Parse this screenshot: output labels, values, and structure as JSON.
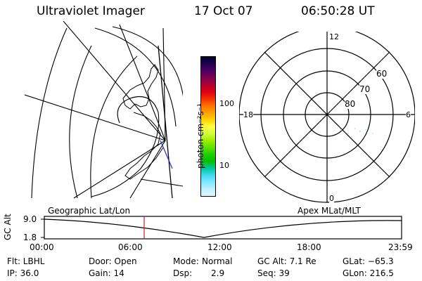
{
  "header": {
    "instrument": "Ultraviolet Imager",
    "date": "17 Oct 07",
    "time": "06:50:28 UT"
  },
  "colorbar": {
    "unit_label": "photon cm⁻²s⁻¹",
    "ticks": [
      "100",
      "10"
    ],
    "colors": [
      "#000030",
      "#200050",
      "#500060",
      "#800050",
      "#b00030",
      "#e00010",
      "#f03000",
      "#ff7000",
      "#ffa000",
      "#ffd000",
      "#ffff40",
      "#d0ff40",
      "#a0f000",
      "#60e000",
      "#20d000",
      "#00c000",
      "#00c8a0",
      "#40d8f0",
      "#80e8ff",
      "#c0f0ff",
      "#e0f8ff"
    ]
  },
  "polar_plot": {
    "mlt_labels": {
      "top": "12",
      "left": "18",
      "right": "6",
      "bottom": "0"
    },
    "lat_labels": [
      "60",
      "70",
      "80"
    ]
  },
  "panels": {
    "left_caption": "Geographic Lat/Lon",
    "right_caption": "Apex MLat/MLT"
  },
  "altitude_plot": {
    "ylabel": "GC Alt",
    "y_ticks": [
      "9.0",
      "1.8"
    ],
    "x_ticks": [
      "00:00",
      "06:00",
      "12:00",
      "18:00",
      "23:59"
    ]
  },
  "info": {
    "flt": "Flt: LBHL",
    "ip": "IP: 36.0",
    "door": "Door: Open",
    "gain": "Gain: 14",
    "mode_key": "Mode:",
    "mode_val": "Normal",
    "dsp_key": "Dsp:",
    "dsp_val": "2.9",
    "gcalt": "GC Alt: 7.1 Re",
    "seq": "Seq: 39",
    "glat": "GLat: −65.3",
    "glon": "GLon: 216.5"
  }
}
